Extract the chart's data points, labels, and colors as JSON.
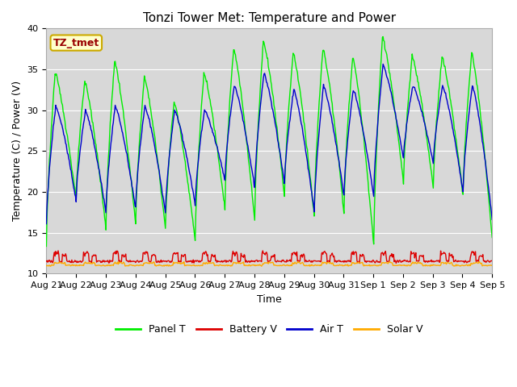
{
  "title": "Tonzi Tower Met: Temperature and Power",
  "xlabel": "Time",
  "ylabel": "Temperature (C) / Power (V)",
  "ylim": [
    10,
    40
  ],
  "yticks": [
    10,
    15,
    20,
    25,
    30,
    35,
    40
  ],
  "annotation_text": "TZ_tmet",
  "annotation_bg": "#ffffcc",
  "annotation_border": "#ccaa00",
  "annotation_text_color": "#990000",
  "colors": {
    "panel_t": "#00ee00",
    "battery_v": "#dd0000",
    "air_t": "#0000cc",
    "solar_v": "#ffaa00"
  },
  "legend_labels": [
    "Panel T",
    "Battery V",
    "Air T",
    "Solar V"
  ],
  "plot_bg": "#d8d8d8",
  "fig_bg": "#ffffff",
  "tick_label_fontsize": 8,
  "axis_label_fontsize": 9,
  "title_fontsize": 11,
  "panel_peaks": [
    34.5,
    33.5,
    36.0,
    34.0,
    31.0,
    34.5,
    37.5,
    38.5,
    37.0,
    37.5,
    36.5,
    39.0,
    36.5,
    36.5,
    37.0
  ],
  "panel_troughs": [
    13.5,
    19.0,
    15.5,
    16.0,
    15.5,
    14.0,
    18.0,
    16.5,
    19.5,
    17.0,
    17.5,
    13.5,
    21.0,
    20.5,
    19.5
  ],
  "air_peaks": [
    30.5,
    30.0,
    30.5,
    30.5,
    30.0,
    30.0,
    33.0,
    34.5,
    32.5,
    33.0,
    32.5,
    35.5,
    33.0,
    33.0,
    33.0
  ],
  "air_troughs": [
    16.0,
    19.0,
    17.5,
    18.0,
    17.5,
    18.5,
    21.5,
    20.5,
    21.0,
    17.5,
    19.5,
    19.5,
    24.0,
    23.5,
    20.0
  ]
}
